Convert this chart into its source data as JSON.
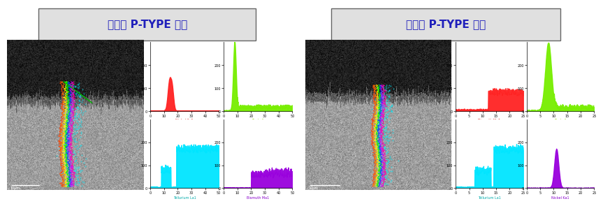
{
  "left_title": "중국산 P-TYPE 상부",
  "right_title": "중국산 P-TYPE 하부",
  "background_color": "#ffffff",
  "title_box_color": "#e0e0e0",
  "title_text_color": "#2020bb",
  "title_fontsize": 11,
  "chart_labels_left": [
    "Nickel Ka1",
    "Tin La1",
    "Tellurium La1",
    "Bismuth Ma1"
  ],
  "chart_labels_right": [
    "Bismuth Ma1",
    "Tin La1",
    "Tellurium La1",
    "Nickel Ka1"
  ],
  "chart_label_colors_left": [
    "#cc0000",
    "#88cc00",
    "#00cccc",
    "#8800cc"
  ],
  "chart_label_colors_right": [
    "#cc0000",
    "#88cc00",
    "#00cccc",
    "#8800cc"
  ]
}
